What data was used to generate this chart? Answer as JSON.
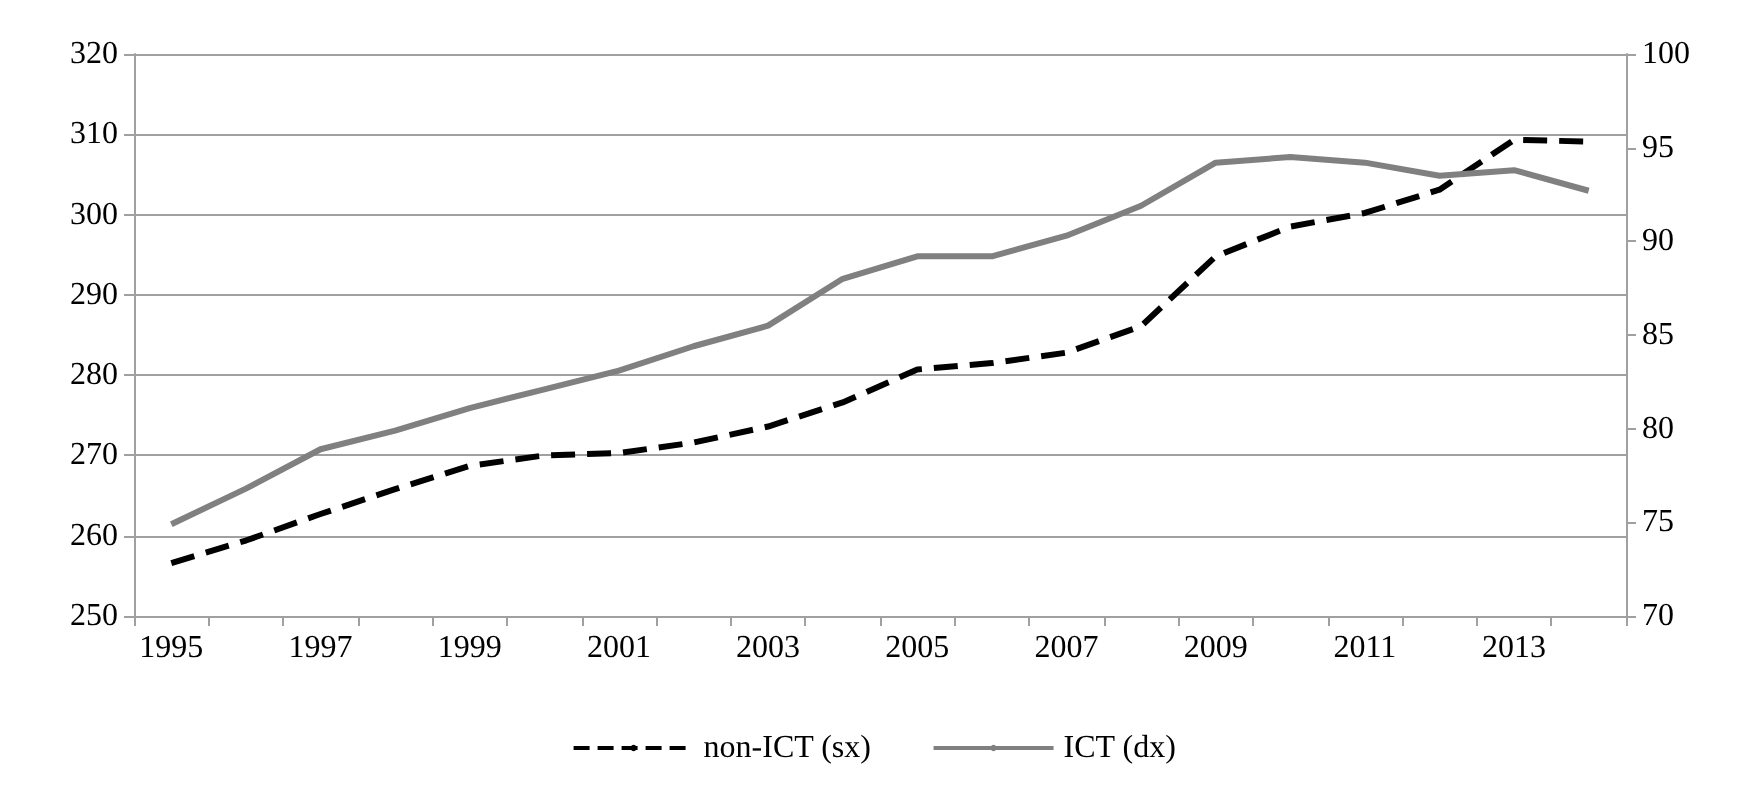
{
  "chart_data": {
    "type": "line",
    "categories": [
      "1995",
      null,
      "1997",
      null,
      "1999",
      null,
      "2001",
      null,
      "2003",
      null,
      "2005",
      null,
      "2007",
      null,
      "2009",
      null,
      "2011",
      null,
      "2013",
      null
    ],
    "series": [
      {
        "name": "non-ICT (sx)",
        "color": "#000000",
        "line_style": "dashed",
        "values": [
          256.6,
          259.4,
          262.7,
          265.8,
          268.7,
          270.0,
          270.3,
          271.6,
          273.6,
          276.6,
          280.7,
          281.5,
          282.8,
          286.1,
          294.8,
          298.5,
          300.2,
          303.1,
          309.3,
          309.1
        ]
      },
      {
        "name": "ICT (dx)",
        "color": "#808080",
        "line_style": "solid",
        "axis": "y2",
        "values": [
          74.9,
          76.8,
          78.9,
          79.9,
          81.1,
          82.1,
          83.1,
          84.4,
          85.5,
          88.0,
          89.2,
          89.2,
          90.3,
          91.9,
          94.2,
          94.5,
          94.2,
          93.5,
          93.8,
          92.7
        ]
      }
    ],
    "ylim": [
      250,
      320
    ],
    "yticks": [
      250,
      260,
      270,
      280,
      290,
      300,
      310,
      320
    ],
    "y2lim": [
      70,
      100
    ],
    "y2ticks": [
      70,
      75,
      80,
      85,
      90,
      95,
      100
    ],
    "grid": "y",
    "legend": "bottom",
    "marker": "none"
  }
}
